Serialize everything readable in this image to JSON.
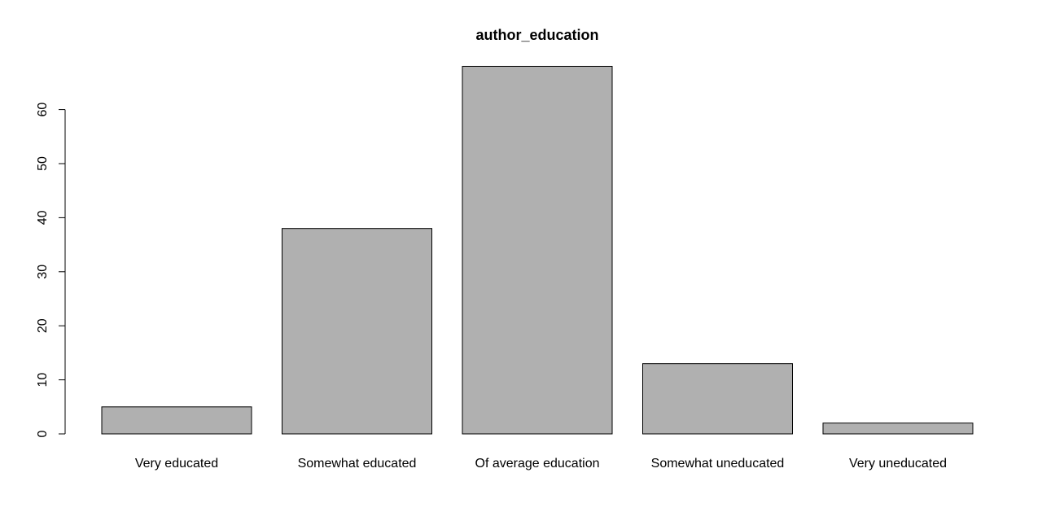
{
  "chart_data": {
    "type": "bar",
    "title": "author_education",
    "xlabel": "",
    "ylabel": "",
    "categories": [
      "Very educated",
      "Somewhat educated",
      "Of average education",
      "Somewhat uneducated",
      "Very uneducated"
    ],
    "values": [
      5,
      38,
      68,
      13,
      2
    ],
    "yticks": [
      0,
      10,
      20,
      30,
      40,
      50,
      60
    ],
    "ylim": [
      0,
      68
    ],
    "grid": false,
    "bar_color": "#b0b0b0",
    "edge_color": "#000000"
  }
}
